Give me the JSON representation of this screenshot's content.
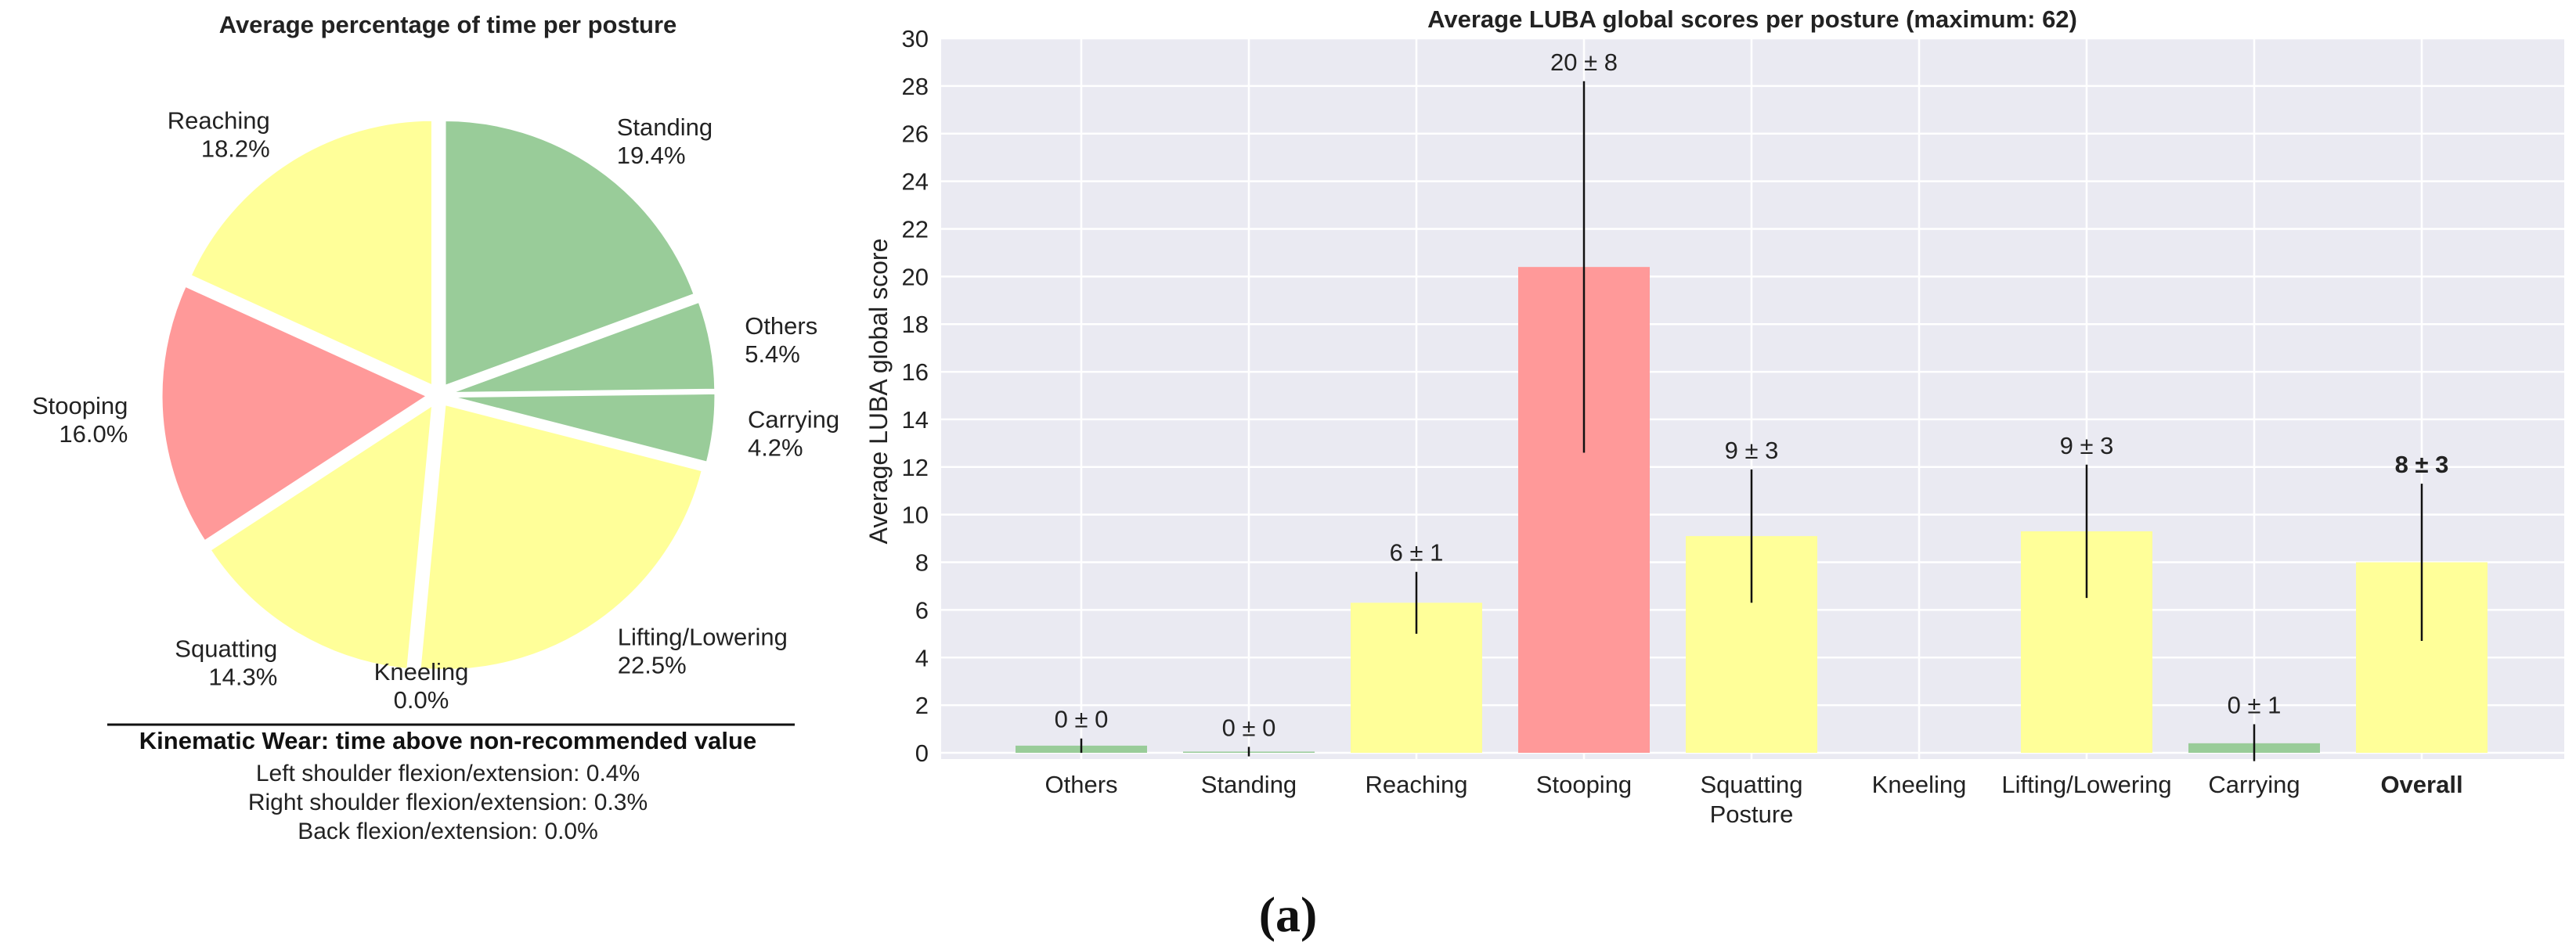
{
  "pie": {
    "title": "Average percentage of time per posture",
    "slices": [
      {
        "label": "Reaching",
        "value": 18.2,
        "pct_label": "18.2%",
        "color": "#ffff99"
      },
      {
        "label": "Standing",
        "value": 19.4,
        "pct_label": "19.4%",
        "color": "#99cc99"
      },
      {
        "label": "Others",
        "value": 5.4,
        "pct_label": "5.4%",
        "color": "#99cc99"
      },
      {
        "label": "Carrying",
        "value": 4.2,
        "pct_label": "4.2%",
        "color": "#99cc99"
      },
      {
        "label": "Lifting/Lowering",
        "value": 22.5,
        "pct_label": "22.5%",
        "color": "#ffff99"
      },
      {
        "label": "Kneeling",
        "value": 0.0,
        "pct_label": "0.0%",
        "color": "#ffff99"
      },
      {
        "label": "Squatting",
        "value": 14.3,
        "pct_label": "14.3%",
        "color": "#ffff99"
      },
      {
        "label": "Stooping",
        "value": 16.0,
        "pct_label": "16.0%",
        "color": "#ff9999"
      }
    ]
  },
  "wear": {
    "title": "Kinematic Wear: time above non-recommended value",
    "lines": [
      "Left shoulder flexion/extension: 0.4%",
      "Right shoulder flexion/extension: 0.3%",
      "Back flexion/extension: 0.0%"
    ]
  },
  "chart_data": [
    {
      "type": "pie",
      "title": "Average percentage of time per posture",
      "categories": [
        "Reaching",
        "Standing",
        "Others",
        "Carrying",
        "Lifting/Lowering",
        "Kneeling",
        "Squatting",
        "Stooping"
      ],
      "values": [
        18.2,
        19.4,
        5.4,
        4.2,
        22.5,
        0.0,
        14.3,
        16.0
      ]
    },
    {
      "type": "bar",
      "title": "Average LUBA global scores per posture (maximum: 62)",
      "ylabel": "Average LUBA global score",
      "xlabel": "",
      "ylim": [
        0,
        30
      ],
      "yticks": [
        0,
        2,
        4,
        6,
        8,
        10,
        12,
        14,
        16,
        18,
        20,
        22,
        24,
        26,
        28,
        30
      ],
      "grid": true,
      "categories": [
        "Others",
        "Standing",
        "Reaching",
        "Stooping",
        "Squatting\nPosture",
        "Kneeling",
        "Lifting/Lowering",
        "Carrying",
        "Overall"
      ],
      "values": [
        0.3,
        0.05,
        6.3,
        20.4,
        9.1,
        null,
        9.3,
        0.4,
        8.0
      ],
      "errors": [
        0.3,
        0.2,
        1.3,
        7.8,
        2.8,
        null,
        2.8,
        0.8,
        3.3
      ],
      "value_labels": [
        "0 ± 0",
        "0 ± 0",
        "6 ± 1",
        "20 ± 8",
        "9 ± 3",
        "",
        "9 ± 3",
        "0 ± 1",
        "8 ± 3"
      ],
      "colors": [
        "#99cc99",
        "#99cc99",
        "#ffff99",
        "#ff9999",
        "#ffff99",
        "#ffff99",
        "#ffff99",
        "#99cc99",
        "#ffff99"
      ]
    }
  ],
  "caption": "(a)"
}
